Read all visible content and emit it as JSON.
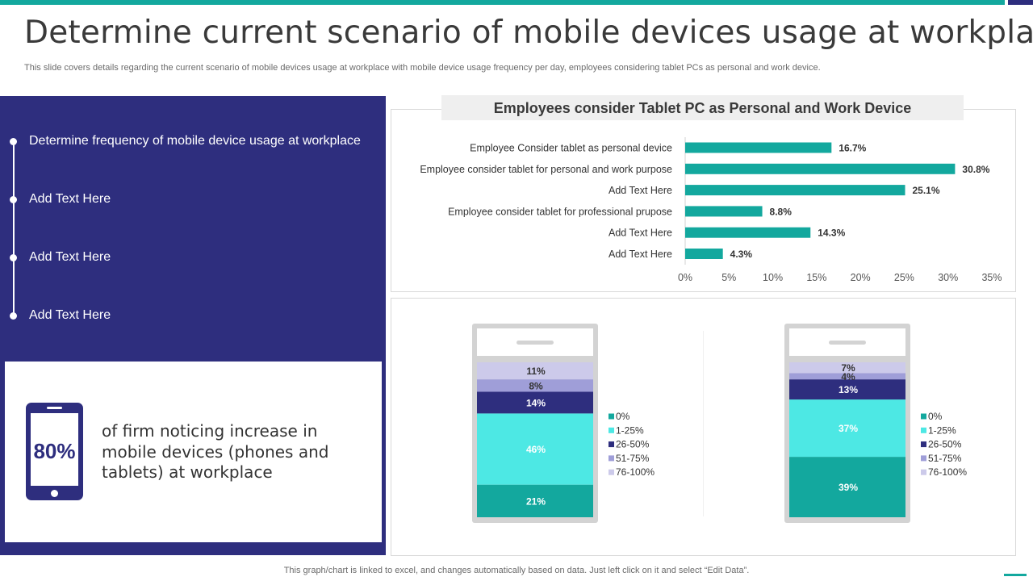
{
  "slide": {
    "title": "Determine current scenario of mobile devices usage at workplace",
    "subtitle": "This slide covers details regarding the current scenario of mobile devices usage at workplace with mobile device usage frequency per day,  employees considering tablet PCs as personal and work device.",
    "footer": "This graph/chart is linked to excel,  and changes automatically based on data. Just left click on it and select “Edit Data”."
  },
  "colors": {
    "accent": "#13a89e",
    "navy": "#2e2e7e",
    "cyan": "#4de8e4",
    "lavender": "#9f9ed8",
    "light_lavender": "#cccaea"
  },
  "left_panel": {
    "items": [
      "Determine frequency of mobile device usage at workplace",
      "Add Text Here",
      "Add Text Here",
      "Add Text Here"
    ],
    "stat": {
      "icon": "phone-icon",
      "value": "80%",
      "text": "of firm noticing increase in mobile devices (phones and tablets) at workplace"
    }
  },
  "chart_data": [
    {
      "type": "bar",
      "orientation": "horizontal",
      "title": "Employees consider Tablet PC as Personal and Work Device",
      "categories": [
        "Employee Consider tablet as personal device",
        "Employee consider tablet for personal and work purpose",
        "Add Text Here",
        "Employee consider tablet for professional prupose",
        "Add Text Here",
        "Add Text Here"
      ],
      "values": [
        16.7,
        30.8,
        25.1,
        8.8,
        14.3,
        4.3
      ],
      "data_labels": [
        "16.7%",
        "30.8%",
        "25.1%",
        "8.8%",
        "14.3%",
        "4.3%"
      ],
      "xlim": [
        0,
        35
      ],
      "x_ticks": [
        "0%",
        "5%",
        "10%",
        "15%",
        "20%",
        "25%",
        "30%",
        "35%"
      ],
      "color": "#13a89e",
      "grid": false
    },
    {
      "type": "bar",
      "stacked": true,
      "legend": [
        "0%",
        "1-25%",
        "26-50%",
        "51-75%",
        "76-100%"
      ],
      "legend_position": "right",
      "series": [
        {
          "name": "0%",
          "values": [
            21
          ],
          "color": "#13a89e"
        },
        {
          "name": "1-25%",
          "values": [
            46
          ],
          "color": "#4de8e4"
        },
        {
          "name": "26-50%",
          "values": [
            14
          ],
          "color": "#2e2e7e"
        },
        {
          "name": "51-75%",
          "values": [
            8
          ],
          "color": "#9f9ed8"
        },
        {
          "name": "76-100%",
          "values": [
            11
          ],
          "color": "#cccaea"
        }
      ],
      "data_labels": [
        "21%",
        "46%",
        "14%",
        "8%",
        "11%"
      ]
    },
    {
      "type": "bar",
      "stacked": true,
      "legend": [
        "0%",
        "1-25%",
        "26-50%",
        "51-75%",
        "76-100%"
      ],
      "legend_position": "right",
      "series": [
        {
          "name": "0%",
          "values": [
            39
          ],
          "color": "#13a89e"
        },
        {
          "name": "1-25%",
          "values": [
            37
          ],
          "color": "#4de8e4"
        },
        {
          "name": "26-50%",
          "values": [
            13
          ],
          "color": "#2e2e7e"
        },
        {
          "name": "51-75%",
          "values": [
            4
          ],
          "color": "#9f9ed8"
        },
        {
          "name": "76-100%",
          "values": [
            7
          ],
          "color": "#cccaea"
        }
      ],
      "data_labels": [
        "39%",
        "37%",
        "13%",
        "4%",
        "7%"
      ]
    }
  ]
}
